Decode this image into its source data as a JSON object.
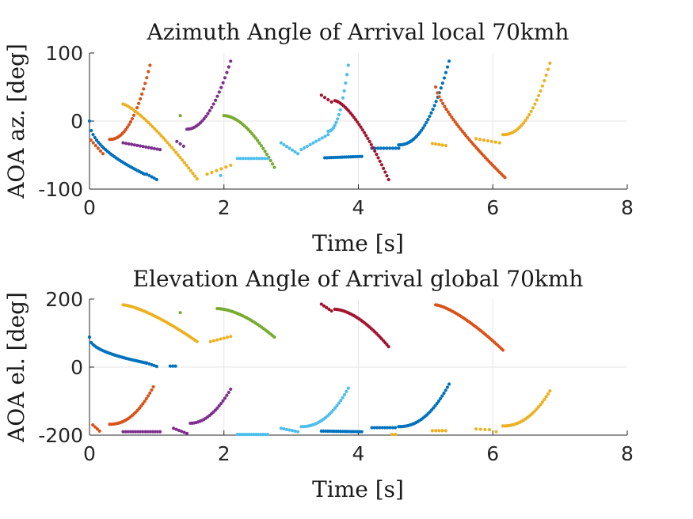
{
  "colors": {
    "blue": "#0072BD",
    "orange": "#D95319",
    "yellow": "#EDB120",
    "purple": "#7E2F8E",
    "green": "#77AC30",
    "cyan": "#4DBEEE",
    "red": "#A2142F"
  },
  "chart_data": [
    {
      "type": "scatter",
      "title": "Azimuth Angle of Arrival local 70kmh",
      "xlabel": "Time [s]",
      "ylabel": "AOA az. [deg]",
      "xlim": [
        0,
        8
      ],
      "ylim": [
        -100,
        100
      ],
      "xticks": [
        "0",
        "2",
        "4",
        "6",
        "8"
      ],
      "yticks": [
        "-100",
        "0",
        "100"
      ],
      "grid": true,
      "series": [
        {
          "color": "blue",
          "segments": [
            {
              "x0": 0.0,
              "y0": 0,
              "x1": 0.82,
              "y1": -78,
              "n": 32,
              "curve": 0.5
            },
            {
              "x0": 0.85,
              "y0": -78,
              "x1": 1.0,
              "y1": -86,
              "n": 5,
              "curve": 1
            },
            {
              "x0": 3.5,
              "y0": -54,
              "x1": 4.05,
              "y1": -52,
              "n": 18,
              "curve": 1
            },
            {
              "x0": 4.2,
              "y0": -40,
              "x1": 4.6,
              "y1": -40,
              "n": 10,
              "curve": 1
            },
            {
              "x0": 4.6,
              "y0": -35,
              "x1": 5.35,
              "y1": 88,
              "n": 32,
              "curve": 2.2
            }
          ]
        },
        {
          "color": "orange",
          "segments": [
            {
              "x0": 0.02,
              "y0": -28,
              "x1": 0.2,
              "y1": -48,
              "n": 6,
              "curve": 1
            },
            {
              "x0": 0.3,
              "y0": -27,
              "x1": 0.9,
              "y1": 82,
              "n": 26,
              "curve": 2.2
            },
            {
              "x0": 5.15,
              "y0": 50,
              "x1": 6.18,
              "y1": -83,
              "n": 40,
              "curve": 0.75
            }
          ]
        },
        {
          "color": "yellow",
          "segments": [
            {
              "x0": 0.5,
              "y0": 25,
              "x1": 1.6,
              "y1": -85,
              "n": 36,
              "curve": 1.3
            },
            {
              "x0": 1.75,
              "y0": -78,
              "x1": 2.1,
              "y1": -65,
              "n": 6,
              "curve": 1
            },
            {
              "x0": 5.1,
              "y0": -33,
              "x1": 5.3,
              "y1": -36,
              "n": 5,
              "curve": 1
            },
            {
              "x0": 5.75,
              "y0": -26,
              "x1": 6.1,
              "y1": -32,
              "n": 7,
              "curve": 1
            },
            {
              "x0": 6.15,
              "y0": -20,
              "x1": 6.85,
              "y1": 85,
              "n": 26,
              "curve": 2.2
            }
          ]
        },
        {
          "color": "purple",
          "segments": [
            {
              "x0": 0.5,
              "y0": -32,
              "x1": 1.05,
              "y1": -42,
              "n": 14,
              "curve": 1
            },
            {
              "x0": 1.3,
              "y0": -30,
              "x1": 1.4,
              "y1": -37,
              "n": 3,
              "curve": 1
            },
            {
              "x0": 1.45,
              "y0": -12,
              "x1": 2.1,
              "y1": 88,
              "n": 24,
              "curve": 2
            }
          ]
        },
        {
          "color": "green",
          "segments": [
            {
              "x0": 1.35,
              "y0": 8,
              "x1": 1.35,
              "y1": 8,
              "n": 1,
              "curve": 1
            },
            {
              "x0": 2.0,
              "y0": 8,
              "x1": 2.75,
              "y1": -68,
              "n": 28,
              "curve": 1.8
            }
          ]
        },
        {
          "color": "cyan",
          "segments": [
            {
              "x0": 1.95,
              "y0": -80,
              "x1": 1.95,
              "y1": -80,
              "n": 1,
              "curve": 1
            },
            {
              "x0": 2.2,
              "y0": -55,
              "x1": 2.65,
              "y1": -55,
              "n": 12,
              "curve": 1
            },
            {
              "x0": 2.85,
              "y0": -32,
              "x1": 3.1,
              "y1": -48,
              "n": 7,
              "curve": 1
            },
            {
              "x0": 3.15,
              "y0": -42,
              "x1": 3.55,
              "y1": -20,
              "n": 10,
              "curve": 1
            },
            {
              "x0": 3.55,
              "y0": -15,
              "x1": 3.85,
              "y1": 82,
              "n": 16,
              "curve": 2.2
            }
          ]
        },
        {
          "color": "red",
          "segments": [
            {
              "x0": 3.45,
              "y0": 38,
              "x1": 3.6,
              "y1": 28,
              "n": 4,
              "curve": 1
            },
            {
              "x0": 3.65,
              "y0": 30,
              "x1": 4.45,
              "y1": -86,
              "n": 32,
              "curve": 1.5
            }
          ]
        }
      ]
    },
    {
      "type": "scatter",
      "title": "Elevation Angle of Arrival global 70kmh",
      "xlabel": "Time [s]",
      "ylabel": "AOA el. [deg]",
      "xlim": [
        0,
        8
      ],
      "ylim": [
        -200,
        200
      ],
      "xticks": [
        "0",
        "2",
        "4",
        "6",
        "8"
      ],
      "yticks": [
        "-200",
        "0",
        "200"
      ],
      "grid": true,
      "series": [
        {
          "color": "blue",
          "segments": [
            {
              "x0": 0.0,
              "y0": 88,
              "x1": 0.85,
              "y1": 12,
              "n": 34,
              "curve": 0.45
            },
            {
              "x0": 0.85,
              "y0": 12,
              "x1": 1.0,
              "y1": 2,
              "n": 5,
              "curve": 1
            },
            {
              "x0": 1.2,
              "y0": 3,
              "x1": 1.28,
              "y1": 3,
              "n": 3,
              "curve": 1
            },
            {
              "x0": 3.45,
              "y0": -188,
              "x1": 4.05,
              "y1": -190,
              "n": 20,
              "curve": 1
            },
            {
              "x0": 4.2,
              "y0": -178,
              "x1": 4.55,
              "y1": -178,
              "n": 10,
              "curve": 1
            },
            {
              "x0": 4.6,
              "y0": -175,
              "x1": 5.35,
              "y1": -50,
              "n": 30,
              "curve": 2.2
            }
          ]
        },
        {
          "color": "orange",
          "segments": [
            {
              "x0": 0.05,
              "y0": -170,
              "x1": 0.15,
              "y1": -188,
              "n": 4,
              "curve": 1
            },
            {
              "x0": 0.3,
              "y0": -168,
              "x1": 0.95,
              "y1": -58,
              "n": 26,
              "curve": 2.2
            },
            {
              "x0": 5.15,
              "y0": 183,
              "x1": 6.15,
              "y1": 50,
              "n": 40,
              "curve": 1.4
            }
          ]
        },
        {
          "color": "yellow",
          "segments": [
            {
              "x0": 0.5,
              "y0": 183,
              "x1": 1.6,
              "y1": 75,
              "n": 40,
              "curve": 1.4
            },
            {
              "x0": 1.8,
              "y0": 75,
              "x1": 2.1,
              "y1": 90,
              "n": 7,
              "curve": 1
            },
            {
              "x0": 4.5,
              "y0": -198,
              "x1": 4.55,
              "y1": -198,
              "n": 2,
              "curve": 1
            },
            {
              "x0": 5.1,
              "y0": -187,
              "x1": 5.3,
              "y1": -187,
              "n": 5,
              "curve": 1
            },
            {
              "x0": 5.75,
              "y0": -182,
              "x1": 5.95,
              "y1": -184,
              "n": 4,
              "curve": 1
            },
            {
              "x0": 6.05,
              "y0": -190,
              "x1": 6.05,
              "y1": -190,
              "n": 1,
              "curve": 1
            },
            {
              "x0": 6.15,
              "y0": -173,
              "x1": 6.85,
              "y1": -70,
              "n": 26,
              "curve": 2.2
            }
          ]
        },
        {
          "color": "purple",
          "segments": [
            {
              "x0": 0.5,
              "y0": -190,
              "x1": 1.05,
              "y1": -190,
              "n": 16,
              "curve": 1
            },
            {
              "x0": 1.25,
              "y0": -180,
              "x1": 1.45,
              "y1": -195,
              "n": 6,
              "curve": 1
            },
            {
              "x0": 1.5,
              "y0": -165,
              "x1": 2.1,
              "y1": -65,
              "n": 22,
              "curve": 2
            }
          ]
        },
        {
          "color": "green",
          "segments": [
            {
              "x0": 1.35,
              "y0": 160,
              "x1": 1.35,
              "y1": 160,
              "n": 1,
              "curve": 1
            },
            {
              "x0": 1.9,
              "y0": 172,
              "x1": 2.75,
              "y1": 88,
              "n": 32,
              "curve": 1.7
            }
          ]
        },
        {
          "color": "cyan",
          "segments": [
            {
              "x0": 2.2,
              "y0": -198,
              "x1": 2.65,
              "y1": -198,
              "n": 14,
              "curve": 1
            },
            {
              "x0": 2.85,
              "y0": -180,
              "x1": 3.1,
              "y1": -190,
              "n": 7,
              "curve": 1
            },
            {
              "x0": 3.15,
              "y0": -175,
              "x1": 3.85,
              "y1": -62,
              "n": 26,
              "curve": 2.2
            }
          ]
        },
        {
          "color": "red",
          "segments": [
            {
              "x0": 3.45,
              "y0": 185,
              "x1": 3.6,
              "y1": 165,
              "n": 5,
              "curve": 1
            },
            {
              "x0": 3.65,
              "y0": 170,
              "x1": 4.45,
              "y1": 60,
              "n": 32,
              "curve": 1.7
            }
          ]
        }
      ]
    }
  ]
}
